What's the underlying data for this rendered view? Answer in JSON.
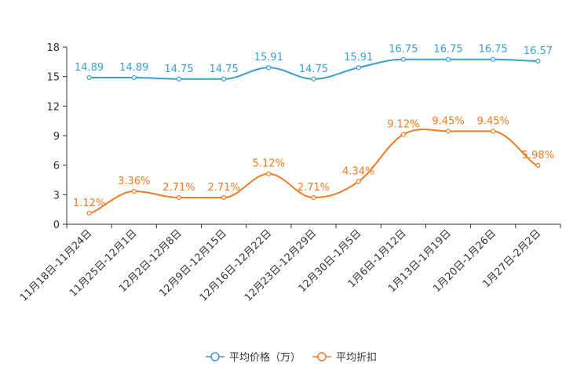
{
  "chart_data": {
    "type": "line",
    "title": "",
    "xlabel": "",
    "ylabel": "",
    "ylim": [
      0,
      18
    ],
    "yticks": [
      0,
      3,
      6,
      9,
      12,
      15,
      18
    ],
    "grid": false,
    "legend_position": "bottom-center",
    "categories": [
      "11月18日-11月24日",
      "11月25日-12月1日",
      "12月2日-12月8日",
      "12月9日-12月15日",
      "12月16日-12月22日",
      "12月23日-12月29日",
      "12月30日-1月5日",
      "1月6日-1月12日",
      "1月13日-1月19日",
      "1月20日-1月26日",
      "1月27日-2月2日"
    ],
    "series": [
      {
        "name": "平均价格（万）",
        "color": "#3a9fce",
        "values": [
          14.89,
          14.89,
          14.75,
          14.75,
          15.91,
          14.75,
          15.91,
          16.75,
          16.75,
          16.75,
          16.57
        ],
        "labels": [
          "14.89",
          "14.89",
          "14.75",
          "14.75",
          "15.91",
          "14.75",
          "15.91",
          "16.75",
          "16.75",
          "16.75",
          "16.57"
        ]
      },
      {
        "name": "平均折扣",
        "color": "#f47920",
        "values": [
          1.12,
          3.36,
          2.71,
          2.71,
          5.12,
          2.71,
          4.34,
          9.12,
          9.45,
          9.45,
          5.98
        ],
        "labels": [
          "1.12%",
          "3.36%",
          "2.71%",
          "2.71%",
          "5.12%",
          "2.71%",
          "4.34%",
          "9.12%",
          "9.45%",
          "9.45%",
          "5.98%"
        ]
      }
    ]
  }
}
